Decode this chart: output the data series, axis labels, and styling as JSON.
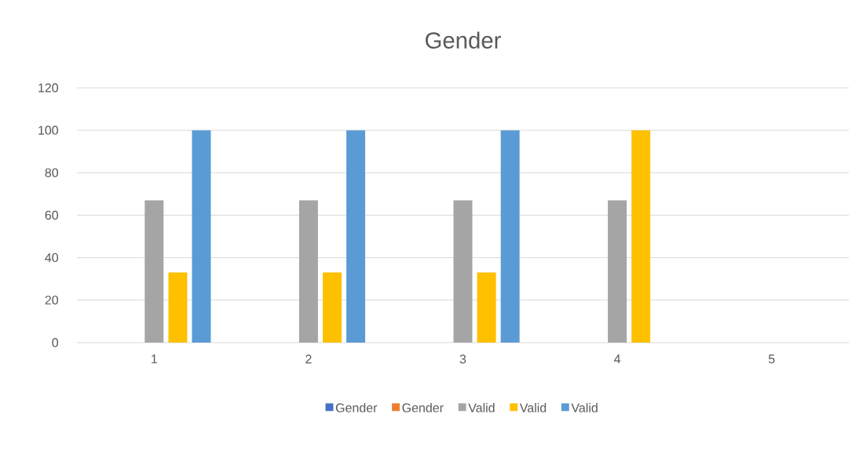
{
  "chart_data": {
    "type": "bar",
    "title": "Gender",
    "categories": [
      "1",
      "2",
      "3",
      "4",
      "5"
    ],
    "ylim": [
      0,
      120
    ],
    "yticks": [
      0,
      20,
      40,
      60,
      80,
      100,
      120
    ],
    "grid": "y",
    "legend": "bottom",
    "series": [
      {
        "name": "Gender",
        "color": "#4472c4",
        "values": [
          null,
          null,
          null,
          null,
          null
        ]
      },
      {
        "name": "Gender",
        "color": "#ed7d31",
        "values": [
          null,
          null,
          null,
          null,
          null
        ]
      },
      {
        "name": "Valid",
        "color": "#a5a5a5",
        "values": [
          67,
          67,
          67,
          67,
          null
        ]
      },
      {
        "name": "Valid",
        "color": "#ffc000",
        "values": [
          33,
          33,
          33,
          100,
          null
        ]
      },
      {
        "name": "Valid",
        "color": "#5b9bd5",
        "values": [
          100,
          100,
          100,
          null,
          null
        ]
      }
    ]
  }
}
